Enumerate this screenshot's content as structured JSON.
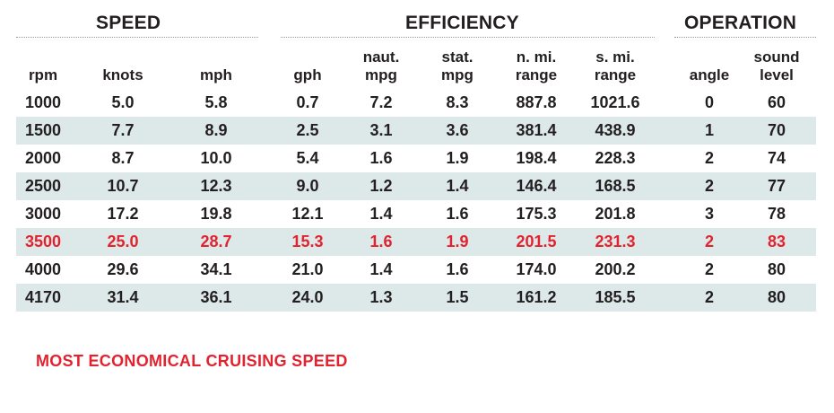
{
  "groups": {
    "speed": "SPEED",
    "efficiency": "EFFICIENCY",
    "operation": "OPERATION"
  },
  "columns": [
    {
      "key": "rpm",
      "line1": "",
      "line2": "rpm"
    },
    {
      "key": "knots",
      "line1": "",
      "line2": "knots"
    },
    {
      "key": "mph",
      "line1": "",
      "line2": "mph"
    },
    {
      "key": "gph",
      "line1": "",
      "line2": "gph"
    },
    {
      "key": "naut_mpg",
      "line1": "naut.",
      "line2": "mpg"
    },
    {
      "key": "stat_mpg",
      "line1": "stat.",
      "line2": "mpg"
    },
    {
      "key": "n_mi_range",
      "line1": "n. mi.",
      "line2": "range"
    },
    {
      "key": "s_mi_range",
      "line1": "s. mi.",
      "line2": "range"
    },
    {
      "key": "angle",
      "line1": "",
      "line2": "angle"
    },
    {
      "key": "sound_level",
      "line1": "sound",
      "line2": "level"
    }
  ],
  "rows": [
    [
      "1000",
      "5.0",
      "5.8",
      "0.7",
      "7.2",
      "8.3",
      "887.8",
      "1021.6",
      "0",
      "60"
    ],
    [
      "1500",
      "7.7",
      "8.9",
      "2.5",
      "3.1",
      "3.6",
      "381.4",
      "438.9",
      "1",
      "70"
    ],
    [
      "2000",
      "8.7",
      "10.0",
      "5.4",
      "1.6",
      "1.9",
      "198.4",
      "228.3",
      "2",
      "74"
    ],
    [
      "2500",
      "10.7",
      "12.3",
      "9.0",
      "1.2",
      "1.4",
      "146.4",
      "168.5",
      "2",
      "77"
    ],
    [
      "3000",
      "17.2",
      "19.8",
      "12.1",
      "1.4",
      "1.6",
      "175.3",
      "201.8",
      "3",
      "78"
    ],
    [
      "3500",
      "25.0",
      "28.7",
      "15.3",
      "1.6",
      "1.9",
      "201.5",
      "231.3",
      "2",
      "83"
    ],
    [
      "4000",
      "29.6",
      "34.1",
      "21.0",
      "1.4",
      "1.6",
      "174.0",
      "200.2",
      "2",
      "80"
    ],
    [
      "4170",
      "31.4",
      "36.1",
      "24.0",
      "1.3",
      "1.5",
      "161.2",
      "185.5",
      "2",
      "80"
    ]
  ],
  "highlight_row": 5,
  "colors": {
    "highlight": "#e2232f",
    "row_shade": "#dde9e8",
    "text": "#231f20"
  },
  "footnote": "MOST ECONOMICAL CRUISING SPEED"
}
